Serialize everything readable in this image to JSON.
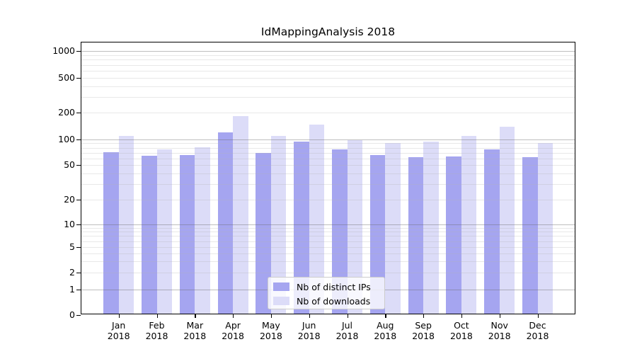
{
  "title": "IdMappingAnalysis 2018",
  "chart_data": {
    "type": "bar",
    "title": "IdMappingAnalysis 2018",
    "categories": [
      "Jan",
      "Feb",
      "Mar",
      "Apr",
      "May",
      "Jun",
      "Jul",
      "Aug",
      "Sep",
      "Oct",
      "Nov",
      "Dec"
    ],
    "category_year": "2018",
    "series": [
      {
        "name": "Nb of distinct IPs",
        "color": "#a5a5f0",
        "values": [
          71,
          64,
          66,
          120,
          70,
          95,
          76,
          65,
          62,
          63,
          77,
          62
        ]
      },
      {
        "name": "Nb of downloads",
        "color": "#dcdcf8",
        "values": [
          110,
          76,
          81,
          183,
          110,
          148,
          98,
          90,
          94,
          110,
          138,
          91
        ]
      }
    ],
    "yscale": "symlog",
    "yticks": [
      0,
      1,
      2,
      5,
      10,
      20,
      50,
      100,
      200,
      500,
      1000
    ],
    "ylim": [
      0,
      1270
    ],
    "grid": true,
    "legend_position": "lower-center",
    "colors": {
      "major_gridline": "#bcbcbc",
      "minor_gridline": "#e4e4e4",
      "axis": "#000000",
      "background": "#ffffff"
    }
  }
}
